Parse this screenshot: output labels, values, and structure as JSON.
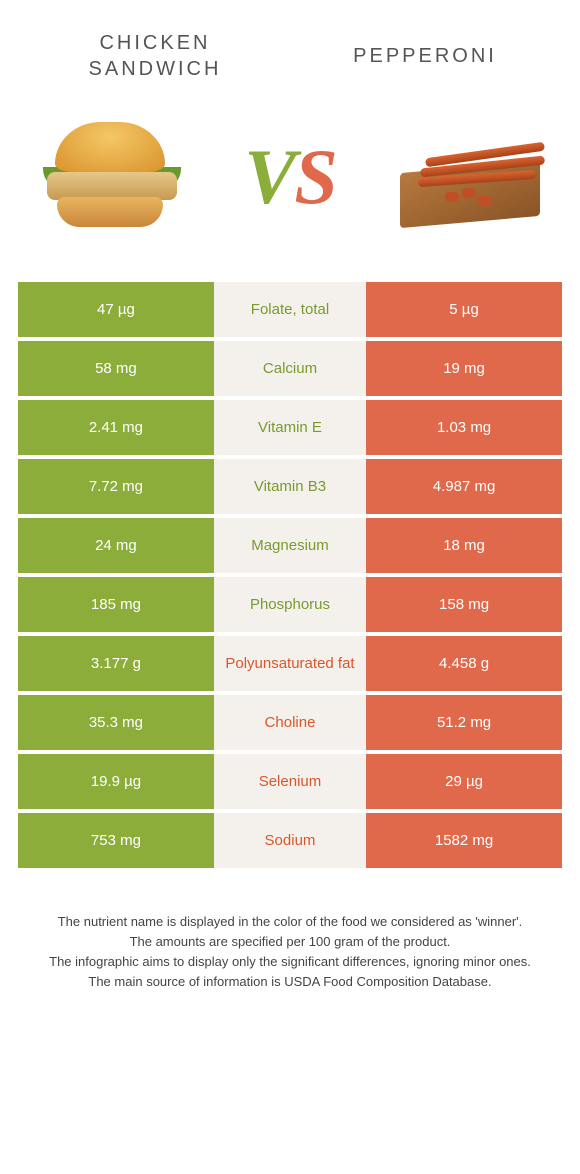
{
  "foods": {
    "left": {
      "name": "Chicken sandwich",
      "color": "#8dad3a"
    },
    "right": {
      "name": "Pepperoni",
      "color": "#e0694b"
    }
  },
  "vs_label": {
    "v": "V",
    "s": "S"
  },
  "rows": [
    {
      "nutrient": "Folate, total",
      "left": "47 µg",
      "right": "5 µg",
      "winner": "left"
    },
    {
      "nutrient": "Calcium",
      "left": "58 mg",
      "right": "19 mg",
      "winner": "left"
    },
    {
      "nutrient": "Vitamin E",
      "left": "2.41 mg",
      "right": "1.03 mg",
      "winner": "left"
    },
    {
      "nutrient": "Vitamin B3",
      "left": "7.72 mg",
      "right": "4.987 mg",
      "winner": "left"
    },
    {
      "nutrient": "Magnesium",
      "left": "24 mg",
      "right": "18 mg",
      "winner": "left"
    },
    {
      "nutrient": "Phosphorus",
      "left": "185 mg",
      "right": "158 mg",
      "winner": "left"
    },
    {
      "nutrient": "Polyunsaturated fat",
      "left": "3.177 g",
      "right": "4.458 g",
      "winner": "right"
    },
    {
      "nutrient": "Choline",
      "left": "35.3 mg",
      "right": "51.2 mg",
      "winner": "right"
    },
    {
      "nutrient": "Selenium",
      "left": "19.9 µg",
      "right": "29 µg",
      "winner": "right"
    },
    {
      "nutrient": "Sodium",
      "left": "753 mg",
      "right": "1582 mg",
      "winner": "right"
    }
  ],
  "footer_lines": [
    "The nutrient name is displayed in the color of the food we considered as 'winner'.",
    "The amounts are specified per 100 gram of the product.",
    "The infographic aims to display only the significant differences, ignoring minor ones.",
    "The main source of information is USDA Food Composition Database."
  ],
  "style": {
    "green": "#8dad3a",
    "orange": "#e0694b",
    "mid_bg": "#f4f1ed",
    "title_fontsize": 20,
    "cell_fontsize": 15,
    "footer_fontsize": 13
  }
}
